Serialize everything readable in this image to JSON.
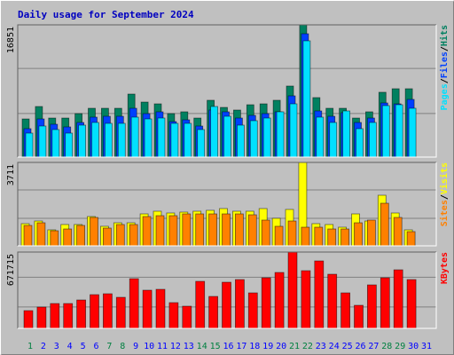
{
  "title": "Daily usage for September 2024",
  "legend_separator": "/",
  "chart_data": [
    {
      "type": "bar",
      "ylim": [
        0,
        16851
      ],
      "yticks": [
        16851
      ],
      "series": [
        {
          "name": "Hits",
          "color": "#008060",
          "values": [
            4860,
            6445,
            4975,
            4975,
            5540,
            6220,
            6220,
            6220,
            8030,
            7010,
            6785,
            5540,
            5770,
            4975,
            7240,
            6330,
            5995,
            6670,
            6785,
            7240,
            9050,
            16851,
            7580,
            6220,
            6220,
            4975,
            5770,
            8260,
            8710,
            8710,
            null
          ]
        },
        {
          "name": "Files",
          "color": "#0040ff",
          "values": [
            3619,
            4863,
            4184,
            3845,
            4411,
            5089,
            5202,
            5202,
            6220,
            5541,
            5768,
            4524,
            4750,
            3958,
            5994,
            5768,
            4976,
            5315,
            5541,
            5768,
            7803,
            15720,
            5881,
            5202,
            5654,
            4411,
            4976,
            6898,
            6785,
            7351,
            null
          ]
        },
        {
          "name": "Pages",
          "color": "#00e0ff",
          "values": [
            3053,
            3958,
            3506,
            3053,
            4071,
            4411,
            4297,
            4297,
            5089,
            4863,
            4976,
            4297,
            4297,
            3506,
            6446,
            5202,
            4071,
            4637,
            4976,
            5768,
            6785,
            14815,
            5089,
            4411,
            5881,
            3619,
            4411,
            6559,
            6672,
            6220,
            null
          ]
        }
      ]
    },
    {
      "type": "bar",
      "ylim": [
        0,
        3711
      ],
      "yticks": [
        3711
      ],
      "series": [
        {
          "name": "Visits",
          "color": "#ffff00",
          "values": [
            987,
            1105,
            711,
            948,
            948,
            1303,
            869,
            1026,
            1026,
            1421,
            1540,
            1461,
            1500,
            1540,
            1579,
            1658,
            1540,
            1540,
            1658,
            1224,
            1619,
            3711,
            987,
            948,
            829,
            1421,
            1105,
            2250,
            1461,
            711,
            null
          ]
        },
        {
          "name": "Sites",
          "color": "#ff8000",
          "values": [
            908,
            1026,
            671,
            750,
            908,
            1263,
            790,
            948,
            948,
            1303,
            1342,
            1342,
            1421,
            1421,
            1421,
            1421,
            1421,
            1382,
            1145,
            869,
            1105,
            829,
            829,
            750,
            750,
            1026,
            1145,
            1895,
            1263,
            632,
            null
          ]
        }
      ]
    },
    {
      "type": "bar",
      "ylim": [
        0,
        671715
      ],
      "yticks": [
        671715
      ],
      "categories": [
        "1",
        "2",
        "3",
        "4",
        "5",
        "6",
        "7",
        "8",
        "9",
        "10",
        "11",
        "12",
        "13",
        "14",
        "15",
        "16",
        "17",
        "18",
        "19",
        "20",
        "21",
        "22",
        "23",
        "24",
        "25",
        "26",
        "27",
        "28",
        "29",
        "30",
        "31"
      ],
      "label_colors": [
        "#008040",
        "#0000ff",
        "#0000ff",
        "#0000ff",
        "#0000ff",
        "#0000ff",
        "#008040",
        "#008040",
        "#0000ff",
        "#0000ff",
        "#0000ff",
        "#0000ff",
        "#0000ff",
        "#008040",
        "#008040",
        "#0000ff",
        "#0000ff",
        "#0000ff",
        "#0000ff",
        "#0000ff",
        "#008040",
        "#008040",
        "#0000ff",
        "#0000ff",
        "#0000ff",
        "#0000ff",
        "#0000ff",
        "#008040",
        "#008040",
        "#0000ff",
        "#0000ff"
      ],
      "series": [
        {
          "name": "KBytes",
          "color": "#ff0000",
          "values": [
            156220,
            187460,
            218700,
            218700,
            249950,
            296820,
            304630,
            273380,
            437420,
            335870,
            343680,
            226520,
            195270,
            413990,
            281200,
            406170,
            429610,
            312440,
            445230,
            492100,
            671715,
            507720,
            593640,
            476470,
            312440,
            203090,
            382740,
            445230,
            515530,
            429610,
            null
          ]
        }
      ]
    }
  ]
}
